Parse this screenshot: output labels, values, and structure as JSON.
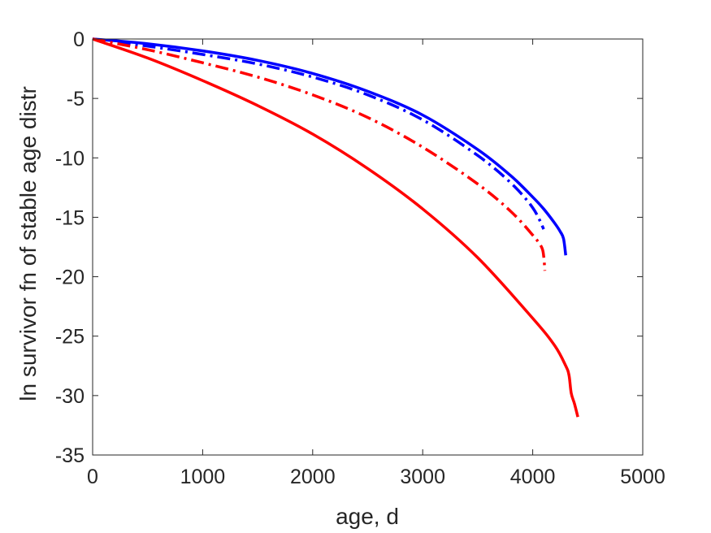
{
  "chart_data": {
    "type": "line",
    "title": "",
    "xlabel": "age, d",
    "ylabel": "ln survivor fn of stable age distr",
    "xlim": [
      0,
      5000
    ],
    "ylim": [
      -35,
      0
    ],
    "xticks": [
      0,
      1000,
      2000,
      3000,
      4000,
      5000
    ],
    "yticks": [
      0,
      -5,
      -10,
      -15,
      -20,
      -25,
      -30,
      -35
    ],
    "xtick_labels": [
      "0",
      "1000",
      "2000",
      "3000",
      "4000",
      "5000"
    ],
    "ytick_labels": [
      "0",
      "-5",
      "-10",
      "-15",
      "-20",
      "-25",
      "-30",
      "-35"
    ],
    "grid": false,
    "legend": "none",
    "series": [
      {
        "color": "#0000ff",
        "style": "solid",
        "x": [
          0,
          500,
          1000,
          1500,
          2000,
          2500,
          3000,
          3500,
          3800,
          4000,
          4100,
          4200,
          4250,
          4280,
          4300
        ],
        "y": [
          0,
          -0.4,
          -1.0,
          -1.8,
          -2.9,
          -4.4,
          -6.4,
          -9.3,
          -11.5,
          -13.3,
          -14.3,
          -15.5,
          -16.2,
          -16.8,
          -18.2
        ]
      },
      {
        "color": "#0000ff",
        "style": "dashdot",
        "x": [
          0,
          500,
          1000,
          1500,
          2000,
          2500,
          3000,
          3500,
          3800,
          4000,
          4100
        ],
        "y": [
          0,
          -0.6,
          -1.3,
          -2.1,
          -3.2,
          -4.7,
          -6.8,
          -9.8,
          -12.1,
          -14.2,
          -16.0
        ]
      },
      {
        "color": "#ff0000",
        "style": "dashdot",
        "x": [
          0,
          500,
          1000,
          1500,
          2000,
          2500,
          3000,
          3500,
          3800,
          4000,
          4080,
          4100,
          4110
        ],
        "y": [
          0,
          -0.9,
          -2.0,
          -3.2,
          -4.7,
          -6.6,
          -9.1,
          -12.2,
          -14.5,
          -16.5,
          -17.5,
          -18.3,
          -19.5
        ]
      },
      {
        "color": "#ff0000",
        "style": "solid",
        "x": [
          0,
          500,
          1000,
          1500,
          2000,
          2500,
          3000,
          3500,
          4000,
          4200,
          4300,
          4330,
          4350,
          4380,
          4410
        ],
        "y": [
          0,
          -1.6,
          -3.5,
          -5.6,
          -8.0,
          -10.9,
          -14.3,
          -18.4,
          -23.5,
          -25.8,
          -27.5,
          -28.3,
          -29.8,
          -30.7,
          -31.8
        ]
      }
    ]
  }
}
